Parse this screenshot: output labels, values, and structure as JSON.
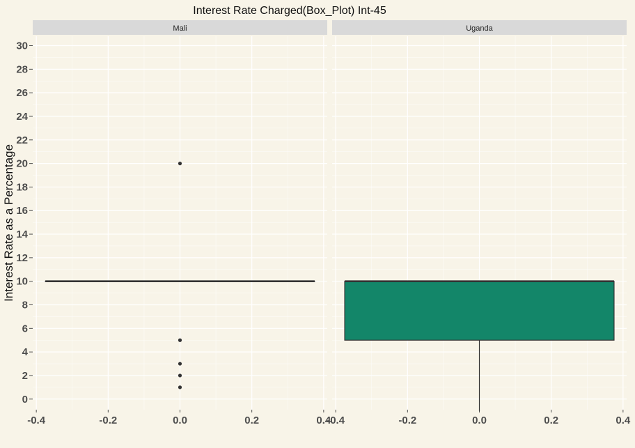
{
  "chart_data": {
    "type": "boxplot",
    "title": "Interest Rate Charged(Box_Plot) Int-45",
    "ylabel": "Interest Rate as a Percentage",
    "xlabel": "",
    "ylim": [
      -0.9,
      30.8
    ],
    "xlim": [
      -0.41,
      0.41
    ],
    "yticks": [
      0,
      2,
      4,
      6,
      8,
      10,
      12,
      14,
      16,
      18,
      20,
      22,
      24,
      26,
      28,
      30
    ],
    "xtick_labels": [
      "-0.4",
      "-0.2",
      "0.0",
      "0.2",
      "0.4"
    ],
    "grid": true,
    "fill_color": "#138669",
    "panel_background": "#f8f4e8",
    "strip_background": "#d9d9d9",
    "panels": [
      {
        "name": "Mali",
        "x_range": [
          -0.375,
          0.375
        ],
        "q1": 10,
        "median": 10,
        "q3": 10,
        "whisker_low": 10,
        "whisker_high": 10,
        "outliers": [
          20,
          5,
          3,
          2,
          1
        ]
      },
      {
        "name": "Uganda",
        "x_range": [
          -0.375,
          0.375
        ],
        "q1": 5,
        "median": 10,
        "q3": 10,
        "whisker_low": -1,
        "whisker_high": 10,
        "outliers": []
      }
    ]
  }
}
